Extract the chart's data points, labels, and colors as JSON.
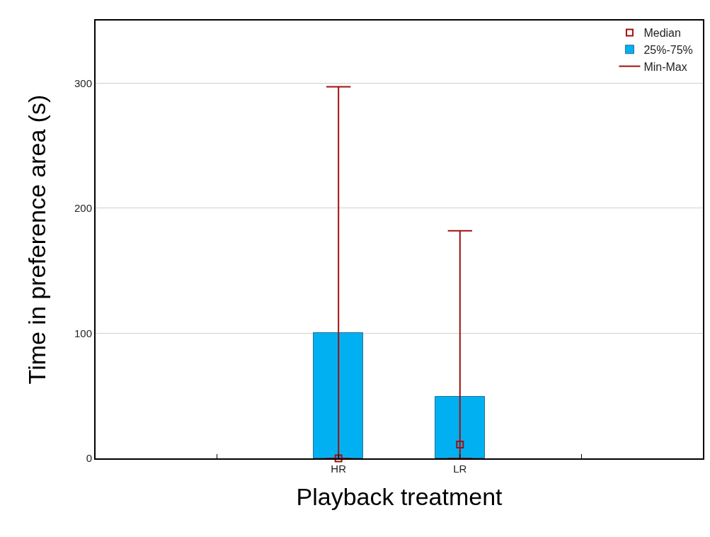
{
  "chart_data": {
    "type": "bar",
    "xlabel": "Playback treatment",
    "ylabel": "Time in preference area (s)",
    "categories": [
      null,
      "HR",
      "LR",
      null
    ],
    "series": [
      {
        "name": "Median",
        "type": "scatter",
        "marker": "square",
        "color": "#a01010",
        "values": [
          null,
          0,
          11,
          null
        ]
      },
      {
        "name": "25%-75%",
        "color": "#00b0f0",
        "base": [
          null,
          0,
          0,
          null
        ],
        "values": [
          null,
          100,
          49,
          null
        ],
        "errors": [
          null,
          [
            0,
            297
          ],
          [
            0,
            182
          ],
          null
        ]
      },
      {
        "name": "Min-Max",
        "type": "line",
        "color": "#a01010",
        "values": [
          null,
          null,
          null,
          null
        ]
      }
    ],
    "ylim": [
      0,
      350
    ],
    "yticks": [
      0,
      100,
      200,
      300
    ],
    "grid": "y",
    "legend": "top right"
  }
}
